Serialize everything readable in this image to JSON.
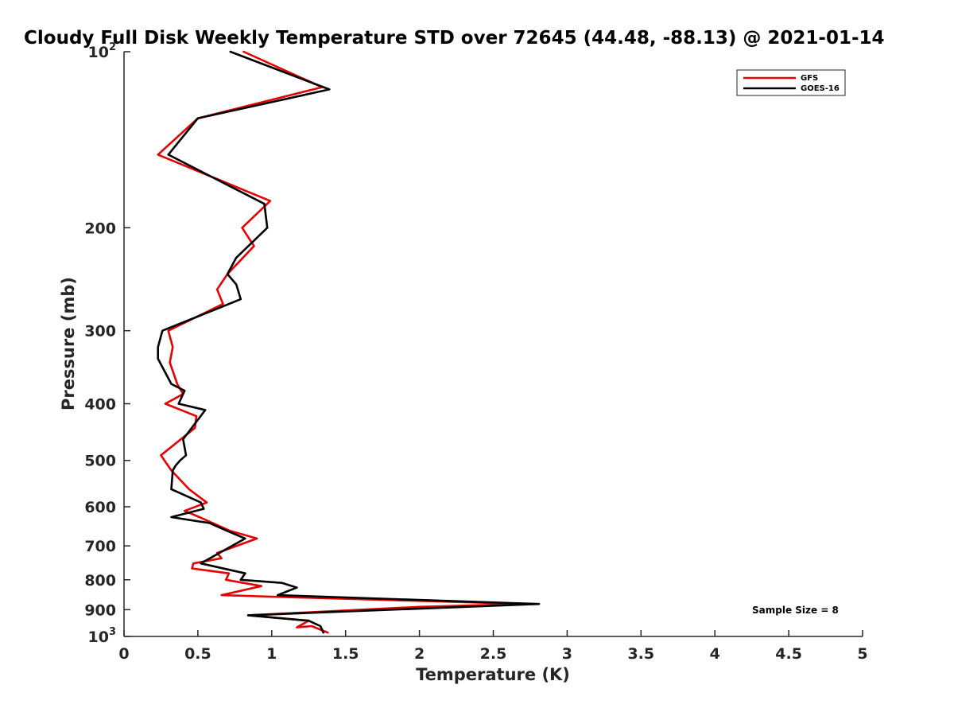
{
  "chart_data": {
    "type": "line",
    "title": "Cloudy Full Disk Weekly Temperature STD over 72645 (44.48, -88.13) @ 2021-01-14",
    "xlabel": "Temperature (K)",
    "ylabel": "Pressure (mb)",
    "xlim": [
      0,
      5
    ],
    "ylim": [
      100,
      1000
    ],
    "y_scale": "log",
    "y_reversed": true,
    "x_ticks": [
      {
        "value": 0,
        "label": "0"
      },
      {
        "value": 0.5,
        "label": "0.5"
      },
      {
        "value": 1,
        "label": "1"
      },
      {
        "value": 1.5,
        "label": "1.5"
      },
      {
        "value": 2,
        "label": "2"
      },
      {
        "value": 2.5,
        "label": "2.5"
      },
      {
        "value": 3,
        "label": "3"
      },
      {
        "value": 3.5,
        "label": "3.5"
      },
      {
        "value": 4,
        "label": "4"
      },
      {
        "value": 4.5,
        "label": "4.5"
      },
      {
        "value": 5,
        "label": "5"
      }
    ],
    "y_ticks": [
      {
        "value": 100,
        "label": "10",
        "exp": "2"
      },
      {
        "value": 200,
        "label": "200"
      },
      {
        "value": 300,
        "label": "300"
      },
      {
        "value": 400,
        "label": "400"
      },
      {
        "value": 500,
        "label": "500"
      },
      {
        "value": 600,
        "label": "600"
      },
      {
        "value": 700,
        "label": "700"
      },
      {
        "value": 800,
        "label": "800"
      },
      {
        "value": 900,
        "label": "900"
      },
      {
        "value": 1000,
        "label": "10",
        "exp": "3"
      }
    ],
    "grid": false,
    "legend_position": "top-right",
    "annotation": "Sample Size = 8",
    "series": [
      {
        "name": "GFS",
        "color": "#e60000",
        "points": [
          [
            0.81,
            100
          ],
          [
            1.34,
            115
          ],
          [
            0.5,
            130
          ],
          [
            0.23,
            150
          ],
          [
            0.99,
            180
          ],
          [
            0.8,
            200
          ],
          [
            0.88,
            215
          ],
          [
            0.7,
            240
          ],
          [
            0.63,
            255
          ],
          [
            0.67,
            270
          ],
          [
            0.3,
            300
          ],
          [
            0.33,
            320
          ],
          [
            0.31,
            340
          ],
          [
            0.36,
            370
          ],
          [
            0.4,
            385
          ],
          [
            0.28,
            400
          ],
          [
            0.49,
            420
          ],
          [
            0.48,
            440
          ],
          [
            0.25,
            490
          ],
          [
            0.32,
            520
          ],
          [
            0.44,
            560
          ],
          [
            0.56,
            590
          ],
          [
            0.41,
            610
          ],
          [
            0.51,
            625
          ],
          [
            0.72,
            660
          ],
          [
            0.9,
            680
          ],
          [
            0.63,
            720
          ],
          [
            0.66,
            735
          ],
          [
            0.47,
            750
          ],
          [
            0.46,
            765
          ],
          [
            0.71,
            780
          ],
          [
            0.69,
            800
          ],
          [
            0.93,
            820
          ],
          [
            0.66,
            850
          ],
          [
            1.0,
            855
          ],
          [
            2.73,
            880
          ],
          [
            2.0,
            890
          ],
          [
            0.84,
            920
          ],
          [
            1.25,
            940
          ],
          [
            1.17,
            965
          ],
          [
            1.27,
            960
          ],
          [
            1.38,
            985
          ]
        ]
      },
      {
        "name": "GOES-16",
        "color": "#000000",
        "points": [
          [
            0.72,
            100
          ],
          [
            1.39,
            116
          ],
          [
            0.5,
            130
          ],
          [
            0.3,
            150
          ],
          [
            0.95,
            182
          ],
          [
            0.97,
            200
          ],
          [
            0.76,
            225
          ],
          [
            0.7,
            240
          ],
          [
            0.76,
            250
          ],
          [
            0.79,
            265
          ],
          [
            0.26,
            300
          ],
          [
            0.23,
            320
          ],
          [
            0.23,
            335
          ],
          [
            0.32,
            370
          ],
          [
            0.41,
            380
          ],
          [
            0.37,
            400
          ],
          [
            0.55,
            410
          ],
          [
            0.4,
            460
          ],
          [
            0.42,
            490
          ],
          [
            0.38,
            500
          ],
          [
            0.35,
            510
          ],
          [
            0.33,
            520
          ],
          [
            0.32,
            560
          ],
          [
            0.52,
            590
          ],
          [
            0.54,
            605
          ],
          [
            0.32,
            625
          ],
          [
            0.58,
            640
          ],
          [
            0.7,
            660
          ],
          [
            0.82,
            680
          ],
          [
            0.52,
            750
          ],
          [
            0.82,
            780
          ],
          [
            0.79,
            800
          ],
          [
            1.07,
            810
          ],
          [
            1.17,
            825
          ],
          [
            1.04,
            850
          ],
          [
            2.81,
            880
          ],
          [
            0.84,
            920
          ],
          [
            1.25,
            940
          ],
          [
            1.33,
            960
          ],
          [
            1.35,
            985
          ]
        ]
      }
    ]
  }
}
